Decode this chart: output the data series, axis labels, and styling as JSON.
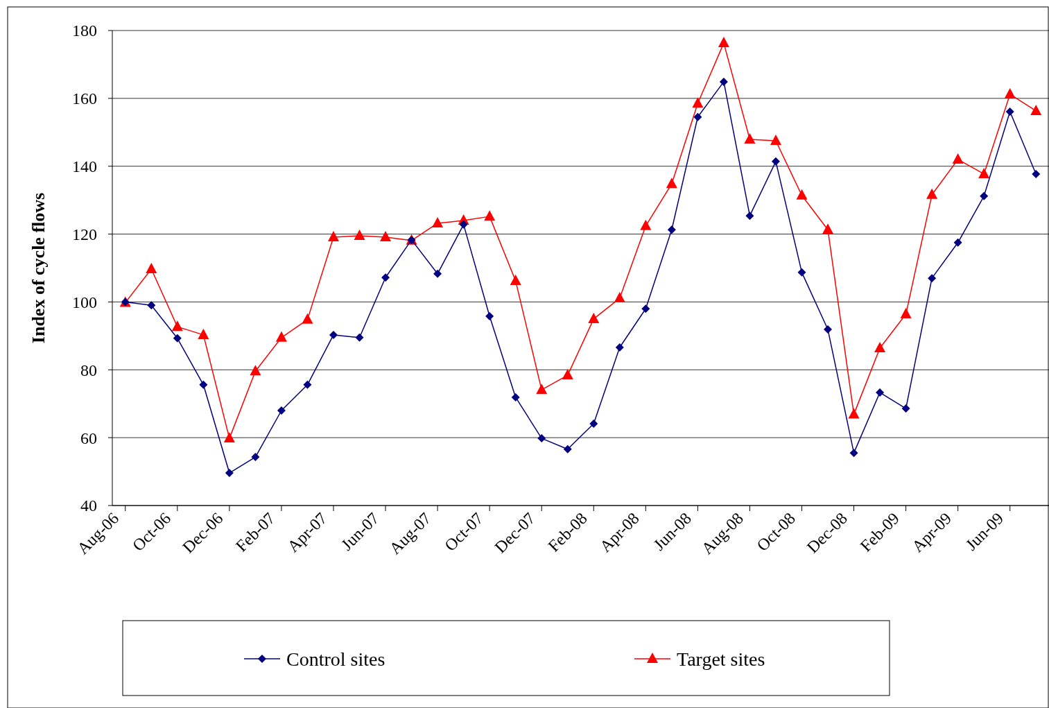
{
  "chart_data": {
    "type": "line",
    "ylabel": "Index of cycle flows",
    "categories": [
      "Aug-06",
      null,
      "Oct-06",
      null,
      "Dec-06",
      null,
      "Feb-07",
      null,
      "Apr-07",
      null,
      "Jun-07",
      null,
      "Aug-07",
      null,
      "Oct-07",
      null,
      "Dec-07",
      null,
      "Feb-08",
      null,
      "Apr-08",
      null,
      "Jun-08",
      null,
      "Aug-08",
      null,
      "Oct-08",
      null,
      "Dec-08",
      null,
      "Feb-09",
      null,
      "Apr-09",
      null,
      "Jun-09",
      null
    ],
    "series": [
      {
        "name": "Control sites",
        "color": "#000080",
        "marker": "diamond",
        "values": [
          100,
          99,
          89.3,
          75.6,
          49.6,
          54.3,
          68,
          75.6,
          90.3,
          89.5,
          107.2,
          118.3,
          108.3,
          122.8,
          95.8,
          71.9,
          59.8,
          56.6,
          64.1,
          86.6,
          98,
          121.3,
          154.5,
          164.9,
          125.4,
          141.4,
          108.7,
          91.9,
          55.5,
          73.3,
          68.6,
          107,
          117.5,
          131.2,
          156.1,
          137.7
        ]
      },
      {
        "name": "Target sites",
        "color": "#ff0000",
        "marker": "triangle",
        "values": [
          99.8,
          109.7,
          92.7,
          90.3,
          59.8,
          79.6,
          89.5,
          94.8,
          119.1,
          119.5,
          119.1,
          118.1,
          123.2,
          124,
          125.2,
          106.2,
          74.1,
          78.4,
          95,
          101.1,
          122.4,
          134.8,
          158.5,
          176.3,
          147.9,
          147.5,
          131.4,
          121.3,
          66.9,
          86.4,
          96.4,
          131.6,
          142,
          137.7,
          161.2,
          156.3
        ]
      }
    ],
    "ylim": [
      40,
      180
    ],
    "yticks": [
      40,
      60,
      80,
      100,
      120,
      140,
      160,
      180
    ],
    "grid": "y",
    "legend": "bottom"
  }
}
